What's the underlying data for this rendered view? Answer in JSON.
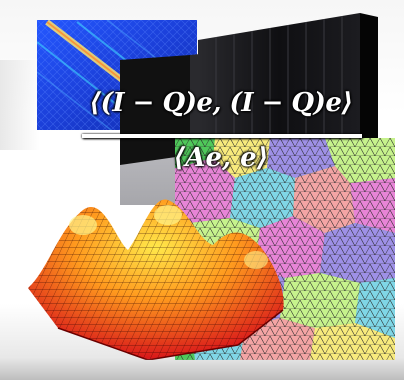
{
  "formula": {
    "numerator": "⟨(I − Q)e, (I − Q)e⟩",
    "denominator": "⟨Ae, e⟩"
  },
  "colors": {
    "matrix_background": "#1b3fd8",
    "matrix_diagonal": "#ffe36a",
    "server": "#151515",
    "server_floor": "#6f6f78",
    "surface_high": "#ffe84a",
    "surface_low": "#d8141a",
    "mesh_palette": [
      "#c6f28c",
      "#f7ea7c",
      "#e784d6",
      "#9e90e6",
      "#7fd6e6",
      "#4fc85a",
      "#f3a4a4"
    ]
  },
  "images": {
    "matrix": "matrix-plot-icon",
    "servers": "supercomputer-icon",
    "surface": "surface-plot-icon",
    "mesh": "partitioned-mesh-icon"
  }
}
